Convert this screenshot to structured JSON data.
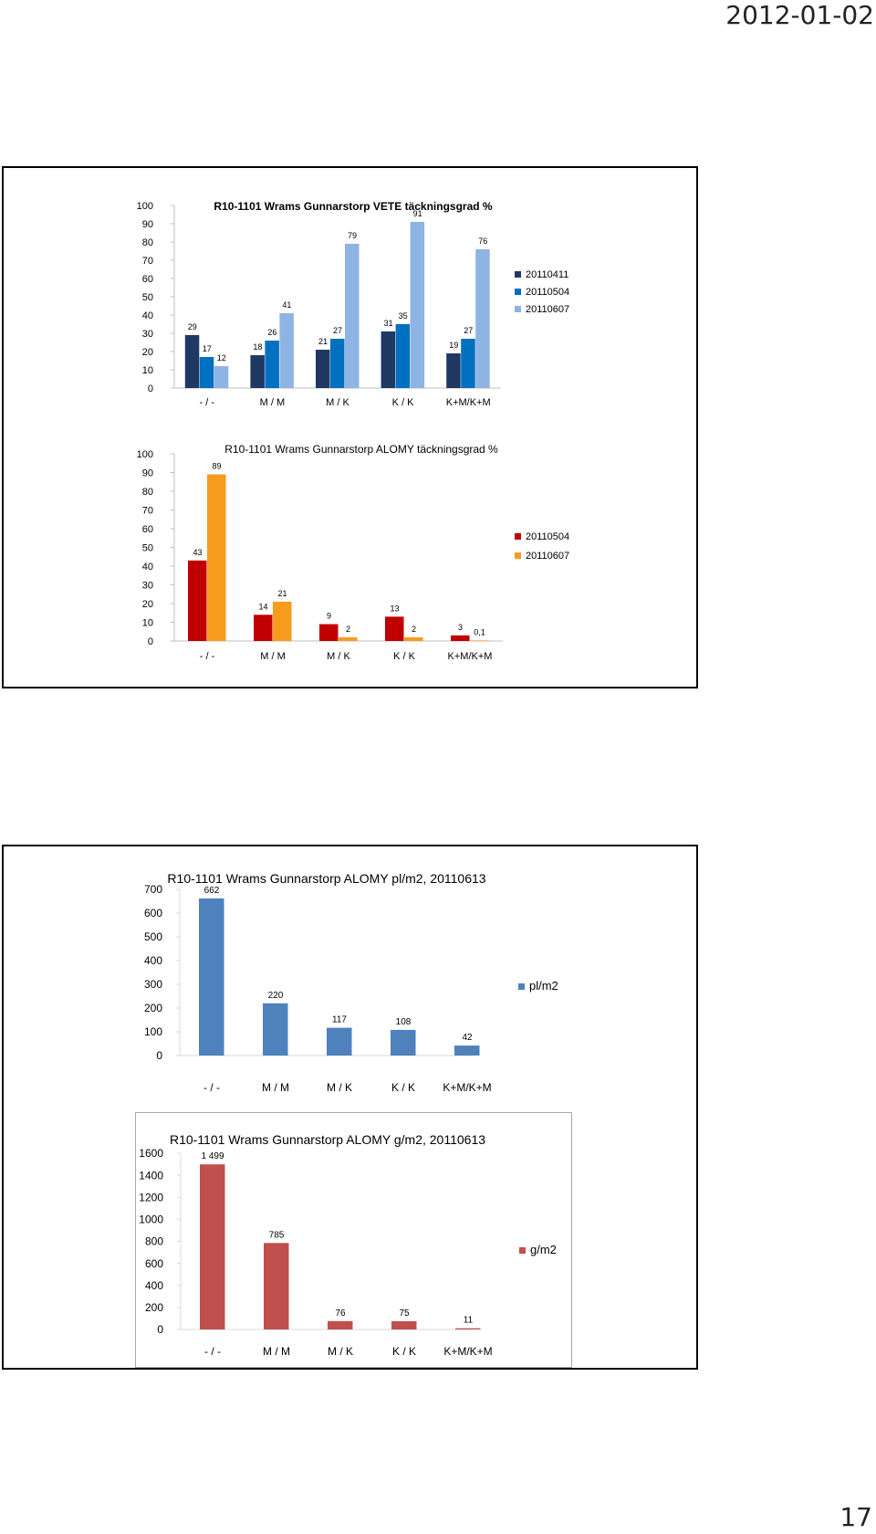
{
  "header": {
    "date": "2012-01-02"
  },
  "footer": {
    "page_number": "17"
  },
  "chart_data": [
    {
      "type": "bar",
      "title": "R10-1101 Wrams Gunnarstorp VETE täckningsgrad %",
      "categories": [
        "- / -",
        "M / M",
        "M / K",
        "K / K",
        "K+M/K+M"
      ],
      "series": [
        {
          "name": "20110411",
          "values": [
            29,
            18,
            21,
            31,
            19
          ],
          "color": "#1f3864"
        },
        {
          "name": "20110504",
          "values": [
            17,
            26,
            27,
            35,
            27
          ],
          "color": "#0070c0"
        },
        {
          "name": "20110607",
          "values": [
            12,
            41,
            79,
            91,
            76
          ],
          "color": "#8eb4e3"
        }
      ],
      "data_labels": [
        [
          "29",
          "18",
          "21",
          "31",
          "19"
        ],
        [
          "17",
          "26",
          "27",
          "35",
          "27"
        ],
        [
          "12",
          "41",
          "79",
          "91",
          "76"
        ]
      ],
      "ylim": [
        0,
        100
      ],
      "yticks": [
        "0",
        "10",
        "20",
        "30",
        "40",
        "50",
        "60",
        "70",
        "80",
        "90",
        "100"
      ],
      "legend": "right",
      "grid": false
    },
    {
      "type": "bar",
      "title": "R10-1101 Wrams Gunnarstorp ALOMY täckningsgrad %",
      "categories": [
        "- / -",
        "M / M",
        "M / K",
        "K / K",
        "K+M/K+M"
      ],
      "series": [
        {
          "name": "20110504",
          "values": [
            43,
            14,
            9,
            13,
            3
          ],
          "color": "#c00000"
        },
        {
          "name": "20110607",
          "values": [
            89,
            21,
            2,
            2,
            0.1
          ],
          "color": "#f79b1e"
        }
      ],
      "data_labels": [
        [
          "43",
          "14",
          "9",
          "13",
          "3"
        ],
        [
          "89",
          "21",
          "2",
          "2",
          "0,1"
        ]
      ],
      "ylim": [
        0,
        100
      ],
      "yticks": [
        "0",
        "10",
        "20",
        "30",
        "40",
        "50",
        "60",
        "70",
        "80",
        "90",
        "100"
      ],
      "legend": "right",
      "grid": false
    },
    {
      "type": "bar",
      "title": "R10-1101 Wrams Gunnarstorp  ALOMY pl/m2, 20110613",
      "categories": [
        "- / -",
        "M / M",
        "M / K",
        "K / K",
        "K+M/K+M"
      ],
      "series": [
        {
          "name": "pl/m2",
          "values": [
            662,
            220,
            117,
            108,
            42
          ],
          "color": "#4f81bd"
        }
      ],
      "data_labels": [
        [
          "662",
          "220",
          "117",
          "108",
          "42"
        ]
      ],
      "ylim": [
        0,
        700
      ],
      "yticks": [
        "0",
        "100",
        "200",
        "300",
        "400",
        "500",
        "600",
        "700"
      ],
      "legend": "right",
      "grid": false
    },
    {
      "type": "bar",
      "title": "R10-1101 Wrams Gunnarstorp  ALOMY g/m2, 20110613",
      "categories": [
        "- / -",
        "M / M",
        "M / K",
        "K / K",
        "K+M/K+M"
      ],
      "series": [
        {
          "name": "g/m2",
          "values": [
            1499,
            785,
            76,
            75,
            11
          ],
          "color": "#c0504d"
        }
      ],
      "data_labels": [
        [
          "1 499",
          "785",
          "76",
          "75",
          "11"
        ]
      ],
      "ylim": [
        0,
        1600
      ],
      "yticks": [
        "0",
        "200",
        "400",
        "600",
        "800",
        "1000",
        "1200",
        "1400",
        "1600"
      ],
      "legend": "right",
      "grid": false
    }
  ]
}
